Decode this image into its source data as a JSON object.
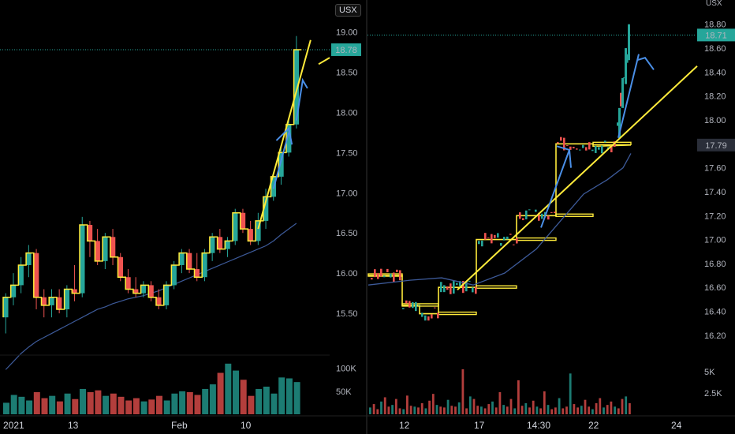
{
  "colors": {
    "up": "#26a69a",
    "down": "#ef5350",
    "overlay": "#ffeb3b",
    "arrow": "#4a8fe7",
    "ma": "#3d5a99",
    "divider": "#333"
  },
  "chart_data": [
    {
      "type": "candlestick",
      "symbol": "USX",
      "last_price_label": "18.78",
      "y_ticks": [
        "19.00",
        "18.50",
        "18.00",
        "17.50",
        "17.00",
        "16.50",
        "16.00",
        "15.50"
      ],
      "volume_ticks": [
        "100K",
        "50K"
      ],
      "x_labels": [
        "2021",
        "13",
        "Feb",
        "10"
      ],
      "ylim": [
        15.0,
        19.3
      ],
      "volume_max": 120000,
      "candles": [
        {
          "o": 15.45,
          "h": 15.75,
          "l": 15.25,
          "c": 15.7
        },
        {
          "o": 15.7,
          "h": 16.0,
          "l": 15.6,
          "c": 15.85
        },
        {
          "o": 15.85,
          "h": 16.2,
          "l": 15.75,
          "c": 16.1
        },
        {
          "o": 16.1,
          "h": 16.35,
          "l": 15.95,
          "c": 16.25
        },
        {
          "o": 16.25,
          "h": 16.3,
          "l": 15.55,
          "c": 15.7
        },
        {
          "o": 15.7,
          "h": 15.8,
          "l": 15.45,
          "c": 15.6
        },
        {
          "o": 15.6,
          "h": 15.8,
          "l": 15.45,
          "c": 15.7
        },
        {
          "o": 15.7,
          "h": 15.8,
          "l": 15.5,
          "c": 15.55
        },
        {
          "o": 15.55,
          "h": 15.85,
          "l": 15.45,
          "c": 15.8
        },
        {
          "o": 15.8,
          "h": 16.1,
          "l": 15.65,
          "c": 15.75
        },
        {
          "o": 15.75,
          "h": 16.7,
          "l": 15.7,
          "c": 16.6
        },
        {
          "o": 16.6,
          "h": 16.65,
          "l": 16.2,
          "c": 16.4
        },
        {
          "o": 16.4,
          "h": 16.55,
          "l": 16.1,
          "c": 16.15
        },
        {
          "o": 16.15,
          "h": 16.5,
          "l": 16.05,
          "c": 16.45
        },
        {
          "o": 16.45,
          "h": 16.55,
          "l": 16.1,
          "c": 16.2
        },
        {
          "o": 16.2,
          "h": 16.25,
          "l": 15.9,
          "c": 15.95
        },
        {
          "o": 15.95,
          "h": 16.05,
          "l": 15.75,
          "c": 15.8
        },
        {
          "o": 15.8,
          "h": 15.95,
          "l": 15.7,
          "c": 15.75
        },
        {
          "o": 15.75,
          "h": 15.9,
          "l": 15.7,
          "c": 15.85
        },
        {
          "o": 15.85,
          "h": 15.9,
          "l": 15.65,
          "c": 15.7
        },
        {
          "o": 15.7,
          "h": 15.8,
          "l": 15.55,
          "c": 15.6
        },
        {
          "o": 15.6,
          "h": 15.9,
          "l": 15.55,
          "c": 15.85
        },
        {
          "o": 15.85,
          "h": 16.15,
          "l": 15.8,
          "c": 16.1
        },
        {
          "o": 16.1,
          "h": 16.3,
          "l": 16.0,
          "c": 16.25
        },
        {
          "o": 16.25,
          "h": 16.3,
          "l": 16.0,
          "c": 16.05
        },
        {
          "o": 16.05,
          "h": 16.25,
          "l": 15.9,
          "c": 15.95
        },
        {
          "o": 15.95,
          "h": 16.3,
          "l": 15.9,
          "c": 16.25
        },
        {
          "o": 16.25,
          "h": 16.5,
          "l": 16.15,
          "c": 16.45
        },
        {
          "o": 16.45,
          "h": 16.55,
          "l": 16.25,
          "c": 16.3
        },
        {
          "o": 16.3,
          "h": 16.45,
          "l": 16.2,
          "c": 16.4
        },
        {
          "o": 16.4,
          "h": 16.8,
          "l": 16.35,
          "c": 16.75
        },
        {
          "o": 16.75,
          "h": 16.8,
          "l": 16.5,
          "c": 16.55
        },
        {
          "o": 16.55,
          "h": 16.65,
          "l": 16.35,
          "c": 16.4
        },
        {
          "o": 16.4,
          "h": 16.75,
          "l": 16.35,
          "c": 16.65
        },
        {
          "o": 16.65,
          "h": 17.05,
          "l": 16.55,
          "c": 16.95
        },
        {
          "o": 16.95,
          "h": 17.25,
          "l": 16.9,
          "c": 17.2
        },
        {
          "o": 17.2,
          "h": 17.55,
          "l": 17.1,
          "c": 17.5
        },
        {
          "o": 17.5,
          "h": 17.9,
          "l": 17.45,
          "c": 17.85
        },
        {
          "o": 17.85,
          "h": 18.95,
          "l": 17.8,
          "c": 18.78
        }
      ],
      "volume": [
        25000,
        42000,
        38000,
        30000,
        48000,
        35000,
        40000,
        28000,
        45000,
        33000,
        55000,
        48000,
        52000,
        40000,
        45000,
        38000,
        30000,
        35000,
        28000,
        32000,
        40000,
        30000,
        45000,
        50000,
        48000,
        42000,
        55000,
        65000,
        90000,
        110000,
        95000,
        75000,
        40000,
        55000,
        60000,
        45000,
        80000,
        78000,
        70000
      ],
      "ma": [
        14.8,
        14.9,
        15.0,
        15.08,
        15.15,
        15.2,
        15.25,
        15.3,
        15.35,
        15.4,
        15.45,
        15.5,
        15.55,
        15.58,
        15.62,
        15.65,
        15.68,
        15.7,
        15.72,
        15.75,
        15.78,
        15.82,
        15.86,
        15.9,
        15.94,
        15.98,
        16.02,
        16.06,
        16.1,
        16.14,
        16.18,
        16.22,
        16.26,
        16.3,
        16.34,
        16.4,
        16.48,
        16.55,
        16.62
      ],
      "last_price": 18.78
    },
    {
      "type": "candlestick",
      "symbol": "USX",
      "last_price_label": "18.71",
      "marker_price_label": "17.79",
      "y_ticks": [
        "18.80",
        "18.60",
        "18.40",
        "18.20",
        "18.00",
        "17.80",
        "17.60",
        "17.40",
        "17.20",
        "17.00",
        "16.80",
        "16.60",
        "16.40",
        "16.20"
      ],
      "volume_ticks": [
        "5K",
        "2.5K"
      ],
      "x_labels": [
        "12",
        "17",
        "14:30",
        "22",
        "24"
      ],
      "ylim": [
        16.1,
        18.95
      ],
      "volume_max": 6500,
      "last_price": 18.71,
      "marker_price": 17.79,
      "steps": [
        16.7,
        16.7,
        16.7,
        16.45,
        16.45,
        16.38,
        16.38,
        16.6,
        16.6,
        17.0,
        17.0,
        16.95,
        16.95,
        17.2,
        17.2,
        17.8,
        17.8,
        17.78,
        17.78,
        17.78,
        17.79
      ],
      "volume": [
        800,
        1200,
        600,
        1500,
        2000,
        900,
        1100,
        1800,
        700,
        600,
        2200,
        1000,
        900,
        800,
        1300,
        700,
        1600,
        2400,
        1100,
        900,
        800,
        1700,
        1000,
        900,
        1400,
        5300,
        700,
        2100,
        1800,
        1000,
        900,
        700,
        1200,
        1500,
        800,
        2600,
        1100,
        900,
        1800,
        700,
        4000,
        1000,
        1300,
        800,
        1600,
        900,
        700,
        2700,
        1100,
        600,
        800,
        1900,
        700,
        900,
        4800,
        1200,
        800,
        1000,
        1700,
        900,
        600,
        1300,
        1900,
        800,
        1100,
        1500,
        900,
        700,
        1800,
        2100,
        1300
      ]
    }
  ]
}
